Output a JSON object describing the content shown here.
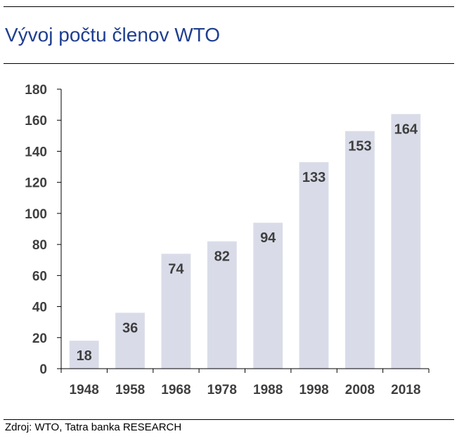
{
  "header": {
    "title": "Vývoj počtu členov WTO"
  },
  "footer": {
    "source": "Zdroj: WTO, Tatra banka RESEARCH"
  },
  "colors": {
    "title": "#1f3f8f",
    "bar": "#d9dce8",
    "axis": "#000000",
    "text": "#3f3f3f"
  },
  "chart_data": {
    "type": "bar",
    "title": "Vývoj počtu členov WTO",
    "xlabel": "",
    "ylabel": "",
    "categories": [
      "1948",
      "1958",
      "1968",
      "1978",
      "1988",
      "1998",
      "2008",
      "2018"
    ],
    "values": [
      18,
      36,
      74,
      82,
      94,
      133,
      153,
      164
    ],
    "data_labels": [
      "18",
      "36",
      "74",
      "82",
      "94",
      "133",
      "153",
      "164"
    ],
    "ylim": [
      0,
      180
    ],
    "yticks": [
      0,
      20,
      40,
      60,
      80,
      100,
      120,
      140,
      160,
      180
    ],
    "grid": false,
    "legend": "none"
  }
}
